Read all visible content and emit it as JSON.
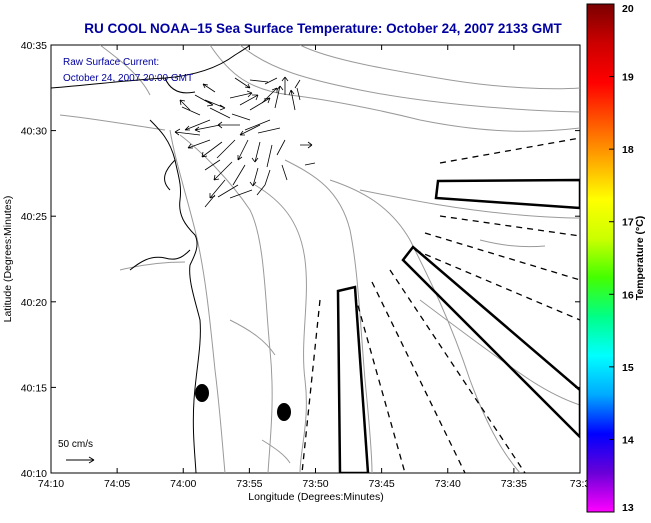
{
  "title": "RU COOL  NOAA–15  Sea Surface Temperature:  October 24, 2007 2133 GMT",
  "inset_label_line1": "Raw Surface Current:",
  "inset_label_line2": "October 24, 2007 20:00 GMT",
  "scale_label": "50 cm/s",
  "xlabel": "Longitude (Degrees:Minutes)",
  "ylabel": "Latitude (Degrees:Minutes)",
  "x_ticks": [
    "74:10",
    "74:05",
    "74:00",
    "73:55",
    "73:50",
    "73:45",
    "73:40",
    "73:35",
    "73:3"
  ],
  "y_ticks": [
    "40:35",
    "40:30",
    "40:25",
    "40:20",
    "40:15",
    "40:10"
  ],
  "colorbar": {
    "label": "Temperature (°C)",
    "ticks": [
      "20",
      "19",
      "18",
      "17",
      "16",
      "15",
      "14",
      "13"
    ],
    "range": [
      13,
      20
    ],
    "colors": [
      "#ff00ff",
      "#6a00d8",
      "#0000ff",
      "#00aaff",
      "#00ffff",
      "#00ff88",
      "#44ff00",
      "#ccff00",
      "#ffff00",
      "#ffaa00",
      "#ff5500",
      "#ff0000",
      "#cc0000",
      "#7a0000"
    ]
  },
  "colors": {
    "title_text": "#0000a0",
    "inset_text": "#0000a0",
    "axis_text": "#000000",
    "contour": "#909090",
    "coast": "#000000"
  }
}
